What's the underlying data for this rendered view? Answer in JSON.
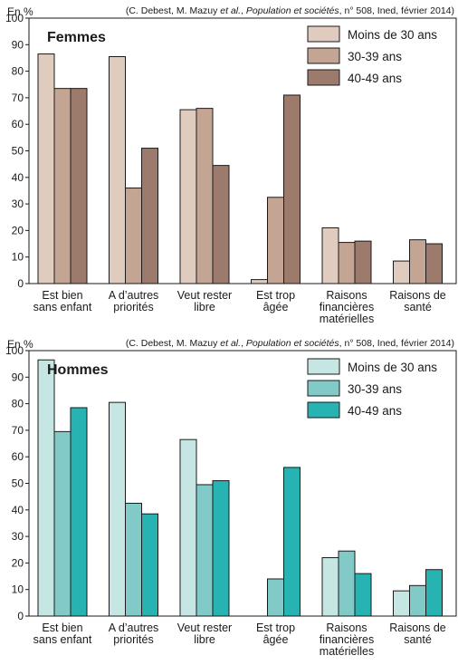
{
  "chart_data": [
    {
      "type": "bar",
      "title": "Femmes",
      "unit_label": "En %",
      "source": {
        "prefix": "(C. Debest, M. Mazuy ",
        "etal": "et al.",
        "sep": ", ",
        "journal": "Population et sociétés",
        "suffix": ", n° 508, Ined, février 2014)"
      },
      "ylim": [
        0,
        100
      ],
      "yticks": [
        0,
        10,
        20,
        30,
        40,
        50,
        60,
        70,
        80,
        90,
        100
      ],
      "categories": [
        [
          "Est bien",
          "sans enfant"
        ],
        [
          "A d’autres",
          "priorités"
        ],
        [
          "Veut rester",
          "libre"
        ],
        [
          "Est trop",
          "âgée"
        ],
        [
          "Raisons",
          "financières",
          "matérielles"
        ],
        [
          "Raisons de",
          "santé"
        ]
      ],
      "series": [
        {
          "name": "Moins de 30 ans",
          "color": "#e0cbbf",
          "values": [
            86.5,
            85.5,
            65.5,
            1.5,
            21,
            8.5
          ]
        },
        {
          "name": "30-39 ans",
          "color": "#c4a493",
          "values": [
            73.5,
            36,
            66,
            32.5,
            15.5,
            16.5
          ]
        },
        {
          "name": "40-49 ans",
          "color": "#9c7b6c",
          "values": [
            73.5,
            51,
            44.5,
            71,
            16,
            15
          ]
        }
      ],
      "legend": "top-right",
      "grid": false
    },
    {
      "type": "bar",
      "title": "Hommes",
      "unit_label": "En %",
      "source": {
        "prefix": "(C. Debest, M. Mazuy ",
        "etal": "et al.",
        "sep": ", ",
        "journal": "Population et sociétés",
        "suffix": ", n° 508, Ined, février 2014)"
      },
      "ylim": [
        0,
        100
      ],
      "yticks": [
        0,
        10,
        20,
        30,
        40,
        50,
        60,
        70,
        80,
        90,
        100
      ],
      "categories": [
        [
          "Est bien",
          "sans enfant"
        ],
        [
          "A d’autres",
          "priorités"
        ],
        [
          "Veut rester",
          "libre"
        ],
        [
          "Est trop",
          "âgée"
        ],
        [
          "Raisons",
          "financières",
          "matérielles"
        ],
        [
          "Raisons de",
          "santé"
        ]
      ],
      "series": [
        {
          "name": "Moins de 30 ans",
          "color": "#c5e6e3",
          "values": [
            96.5,
            80.5,
            66.5,
            0,
            22,
            9.5
          ]
        },
        {
          "name": "30-39 ans",
          "color": "#82cac7",
          "values": [
            69.5,
            42.5,
            49.5,
            14,
            24.5,
            11.5
          ]
        },
        {
          "name": "40-49 ans",
          "color": "#26b3b2",
          "values": [
            78.5,
            38.5,
            51,
            56,
            16,
            17.5
          ]
        }
      ],
      "legend": "top-right",
      "grid": false
    }
  ]
}
